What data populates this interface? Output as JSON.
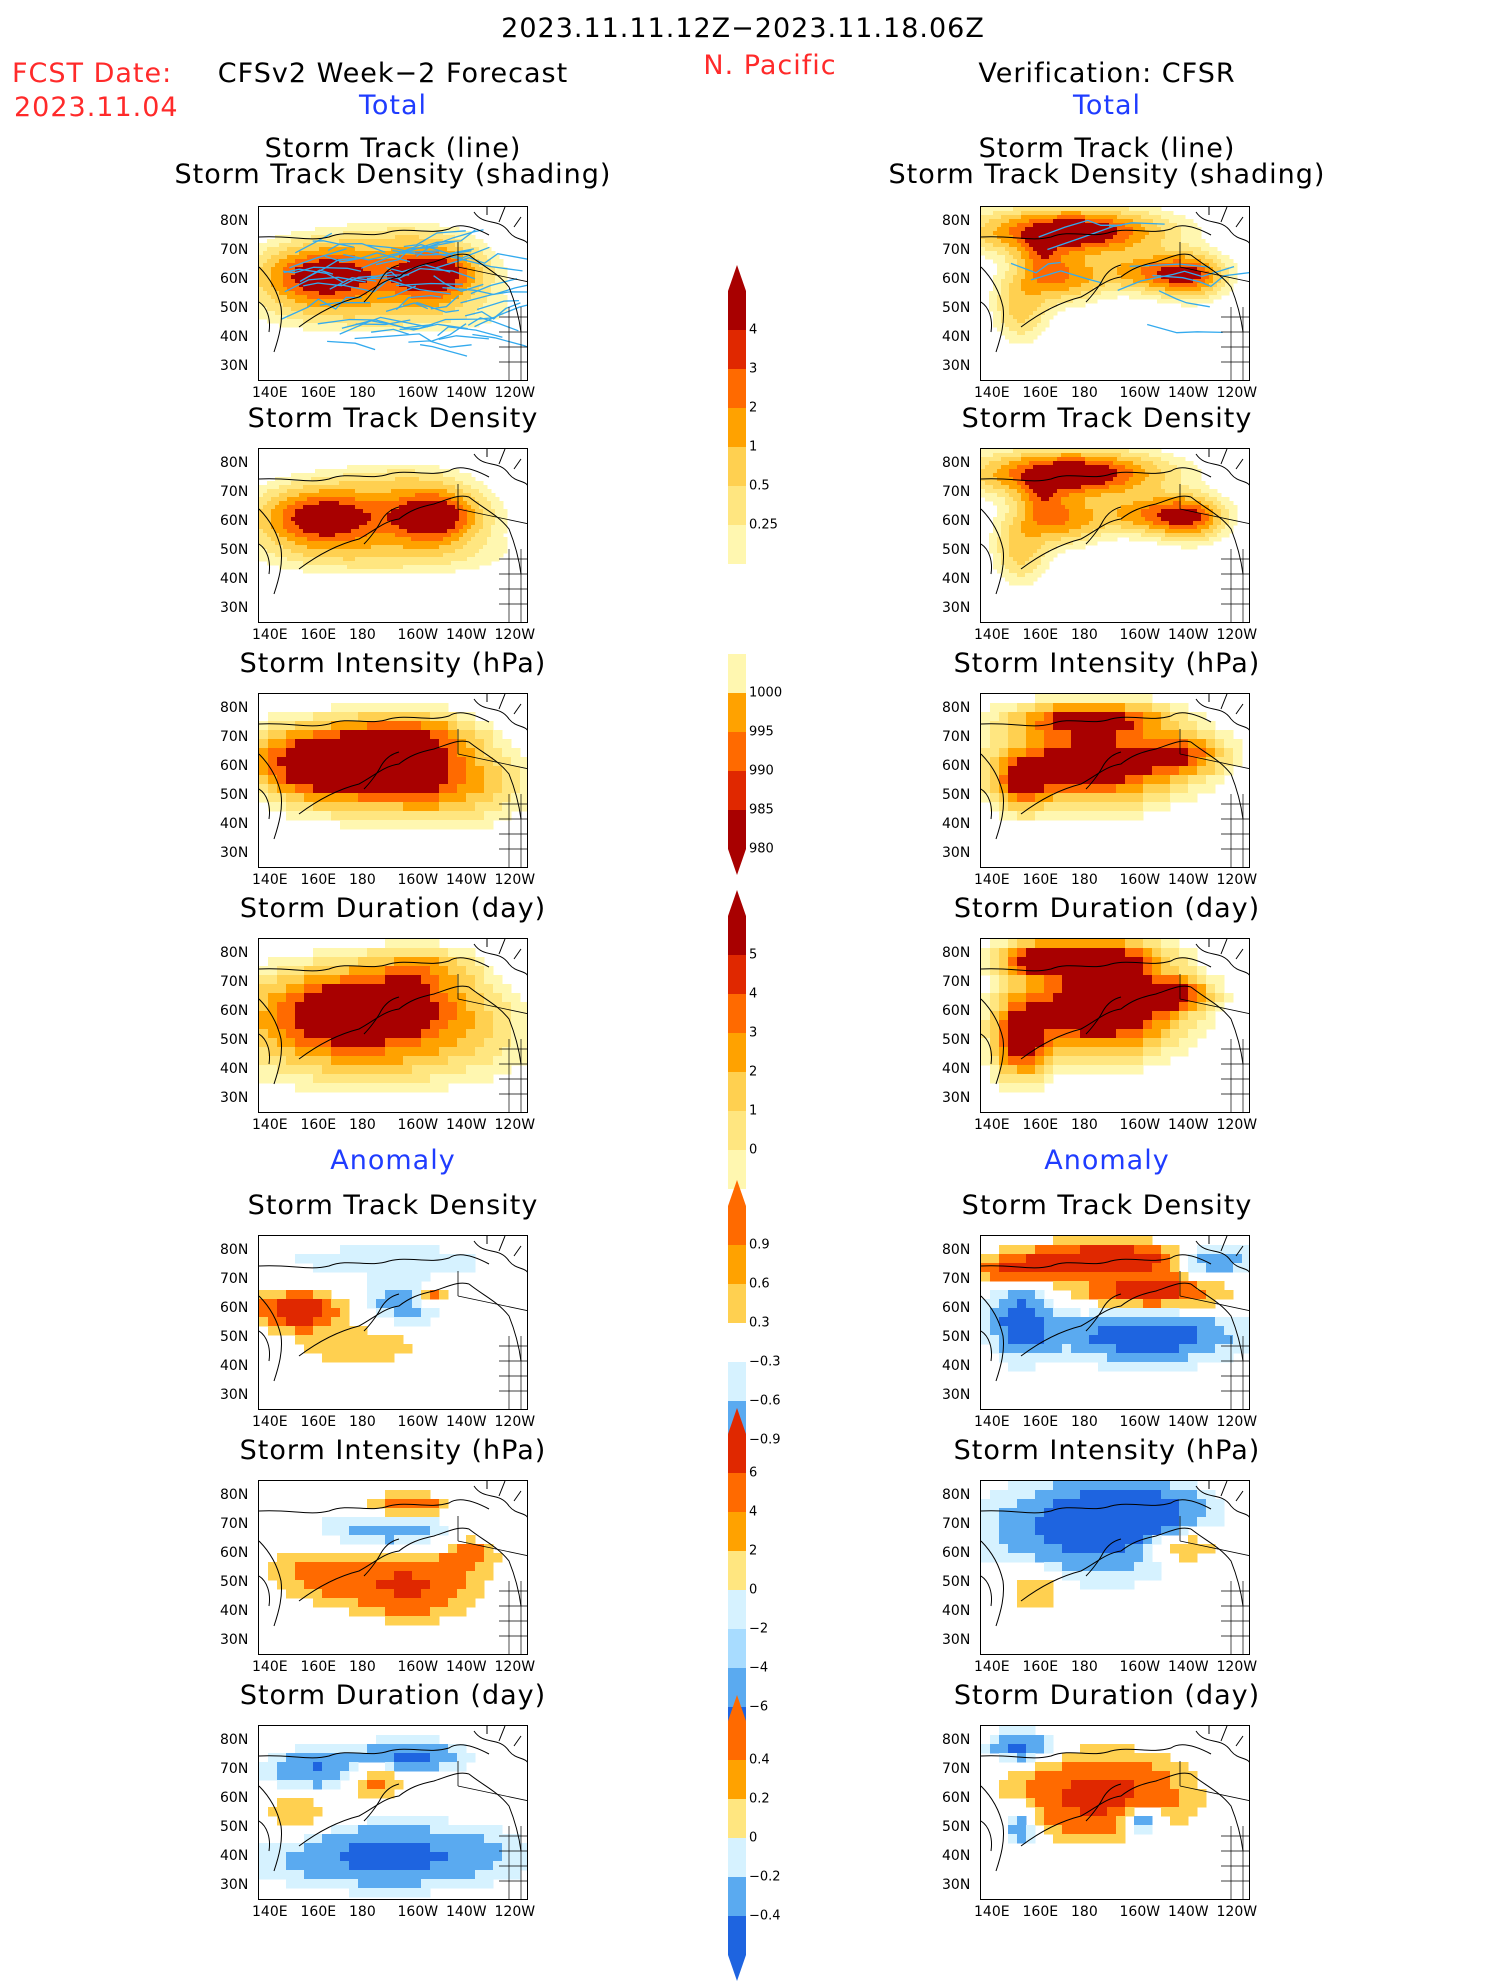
{
  "header": {
    "date_range": "2023.11.11.12Z−2023.11.18.06Z",
    "region": "N. Pacific",
    "fcst_label": "FCST Date:",
    "fcst_date": "2023.11.04",
    "left_title": "CFSv2 Week−2 Forecast",
    "right_title": "Verification: CFSR",
    "total_label": "Total",
    "anomaly_label": "Anomaly"
  },
  "panel_titles": {
    "track_a": "Storm Track (line)",
    "track_b": "Storm Track Density (shading)",
    "density": "Storm Track Density",
    "intensity": "Storm Intensity (hPa)",
    "duration": "Storm Duration (day)"
  },
  "axes": {
    "lat": [
      "80N",
      "70N",
      "60N",
      "50N",
      "40N",
      "30N"
    ],
    "lon": [
      "140E",
      "160E",
      "180",
      "160W",
      "140W",
      "120W"
    ]
  },
  "colorbars": {
    "density": [
      "4",
      "3",
      "2",
      "1",
      "0.5",
      "0.25"
    ],
    "intensity": [
      "1000",
      "995",
      "990",
      "985",
      "980"
    ],
    "duration": [
      "5",
      "4",
      "3",
      "2",
      "1",
      "0"
    ],
    "density_anom": [
      "0.9",
      "0.6",
      "0.3",
      "−0.3",
      "−0.6",
      "−0.9"
    ],
    "intensity_anom": [
      "6",
      "4",
      "2",
      "0",
      "−2",
      "−4",
      "−6"
    ],
    "duration_anom": [
      "0.4",
      "0.2",
      "0",
      "−0.2",
      "−0.4"
    ]
  },
  "colors": {
    "warm": [
      "#fff7b0",
      "#ffe680",
      "#ffd050",
      "#ffa200",
      "#ff6a00",
      "#e02800",
      "#a80000"
    ],
    "cool": [
      "#d6f2ff",
      "#a8dcff",
      "#5aaaf0",
      "#1e64e0"
    ],
    "coast": "#000000",
    "track_line": "#33aaee"
  }
}
